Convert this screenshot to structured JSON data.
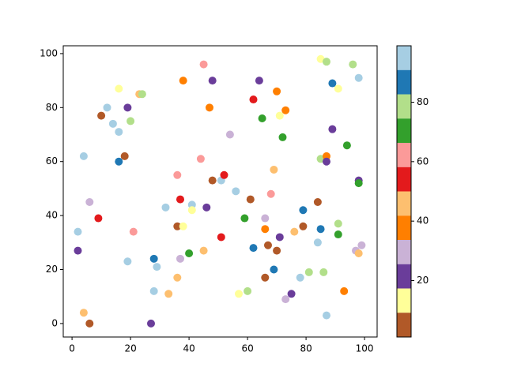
{
  "chart_data": {
    "type": "scatter",
    "x": [
      2,
      2,
      4,
      4,
      6,
      6,
      9,
      10,
      12,
      14,
      16,
      16,
      16,
      18,
      19,
      19,
      20,
      21,
      23,
      24,
      27,
      28,
      28,
      29,
      32,
      33,
      36,
      36,
      36,
      37,
      37,
      38,
      38,
      40,
      41,
      41,
      44,
      45,
      45,
      46,
      47,
      48,
      48,
      51,
      51,
      52,
      54,
      56,
      57,
      59,
      60,
      61,
      62,
      62,
      64,
      65,
      66,
      66,
      66,
      67,
      68,
      69,
      69,
      70,
      70,
      71,
      71,
      72,
      73,
      73,
      75,
      76,
      78,
      79,
      79,
      81,
      84,
      84,
      85,
      85,
      85,
      86,
      87,
      87,
      87,
      87,
      89,
      89,
      91,
      91,
      91,
      93,
      94,
      96,
      97,
      98,
      98,
      98,
      98,
      99
    ],
    "values": [
      34,
      27,
      62,
      4,
      45,
      0,
      39,
      77,
      80,
      74,
      87,
      71,
      60,
      62,
      80,
      23,
      75,
      34,
      85,
      85,
      0,
      24,
      12,
      21,
      43,
      11,
      55,
      36,
      17,
      46,
      24,
      90,
      36,
      26,
      44,
      42,
      61,
      96,
      27,
      43,
      80,
      90,
      53,
      32,
      53,
      55,
      70,
      49,
      11,
      39,
      12,
      46,
      83,
      28,
      90,
      76,
      39,
      35,
      17,
      29,
      48,
      57,
      20,
      86,
      27,
      77,
      32,
      69,
      79,
      9,
      11,
      34,
      17,
      42,
      36,
      19,
      45,
      30,
      98,
      61,
      35,
      19,
      97,
      62,
      60,
      3,
      89,
      72,
      87,
      37,
      33,
      12,
      66,
      96,
      27,
      91,
      53,
      52,
      26,
      29
    ],
    "color_values": [
      95,
      21,
      95,
      46,
      30,
      5,
      54,
      5,
      95,
      95,
      13,
      95,
      87,
      5,
      21,
      95,
      79,
      62,
      46,
      79,
      21,
      87,
      95,
      95,
      95,
      46,
      62,
      5,
      46,
      54,
      30,
      38,
      13,
      70,
      95,
      13,
      62,
      62,
      46,
      21,
      38,
      21,
      5,
      54,
      95,
      54,
      30,
      95,
      13,
      70,
      79,
      5,
      54,
      87,
      21,
      70,
      30,
      38,
      5,
      5,
      62,
      46,
      87,
      38,
      5,
      13,
      21,
      70,
      38,
      30,
      21,
      46,
      95,
      87,
      5,
      79,
      5,
      95,
      13,
      79,
      87,
      79,
      79,
      38,
      21,
      95,
      87,
      21,
      13,
      79,
      70,
      38,
      70,
      79,
      30,
      95,
      21,
      70,
      46,
      30
    ],
    "colormap": [
      "#b15928",
      "#ffff99",
      "#6a3d9a",
      "#cab2d6",
      "#ff7f00",
      "#fdbf6f",
      "#e31a1c",
      "#fb9a99",
      "#33a02c",
      "#b2df8a",
      "#1f78b4",
      "#a6cee3"
    ],
    "clim": [
      1,
      99
    ],
    "colorbar_ticks": [
      20,
      40,
      60,
      80
    ],
    "xlim": [
      -3,
      104.3
    ],
    "ylim": [
      -5,
      102.9
    ],
    "xticks": [
      0,
      20,
      40,
      60,
      80,
      100
    ],
    "yticks": [
      0,
      20,
      40,
      60,
      80,
      100
    ]
  }
}
